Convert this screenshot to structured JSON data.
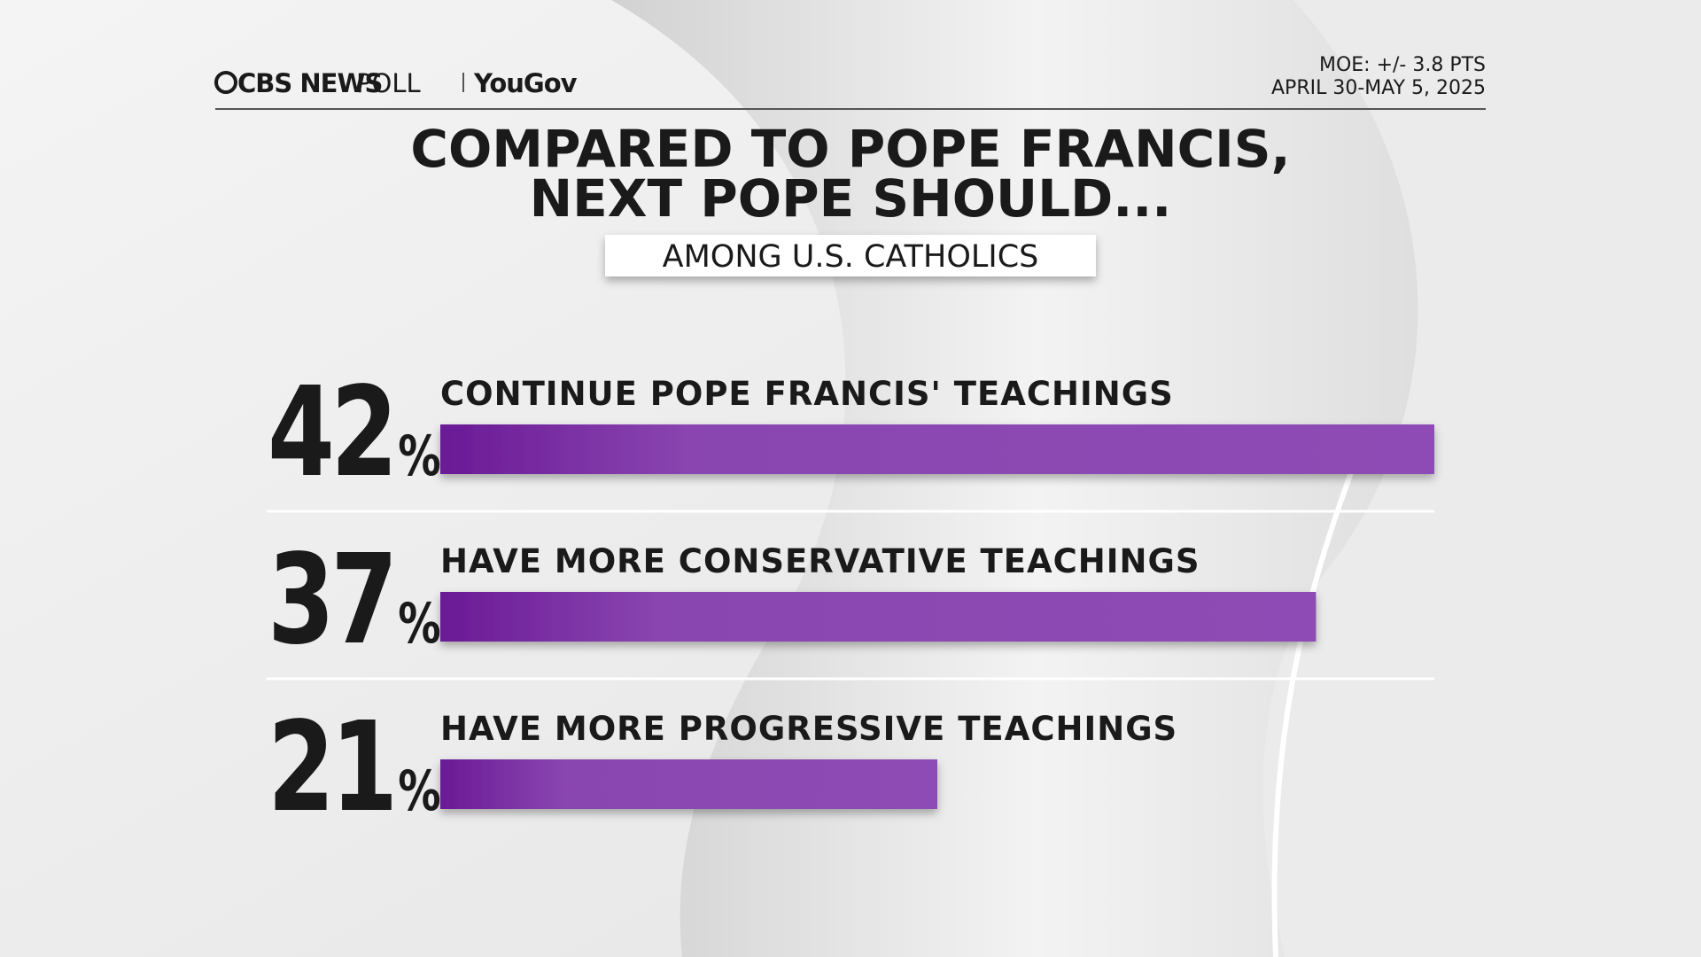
{
  "brand": {
    "source": "CBS NEWS",
    "product": "POLL",
    "partner": "YouGov"
  },
  "moe": "MOE: +/- 3.8 PTS",
  "dates": "APRIL 30-MAY 5, 2025",
  "chart_data": {
    "type": "hbar",
    "title": [
      "COMPARED TO POPE FRANCIS,",
      "NEXT POPE SHOULD..."
    ],
    "subtitle": "AMONG U.S. CATHOLICS",
    "categories": [
      "CONTINUE POPE FRANCIS' TEACHINGS",
      "HAVE MORE CONSERVATIVE TEACHINGS",
      "HAVE MORE PROGRESSIVE TEACHINGS"
    ],
    "values": [
      42,
      37,
      21
    ],
    "value_labels": [
      "42%",
      "37%",
      "21%"
    ],
    "color": "#8e4cb5"
  }
}
